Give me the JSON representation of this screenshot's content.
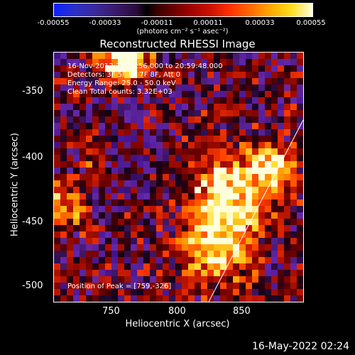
{
  "colorbar": {
    "ticks": [
      "-0.00055",
      "-0.00033",
      "-0.00011",
      "0.00011",
      "0.00033",
      "0.00055"
    ],
    "unit": "(photons cm⁻² s⁻¹ asec⁻²)"
  },
  "title": "Reconstructed RHESSI Image",
  "info": {
    "line1": "16-Nov-2012 20:56:56.000 to 20:59:48.000",
    "line2": "Detectors: 3F 5F 6F 7F 8F, Att 0",
    "line3": "Energy Range: 25.0 - 50.0 keV",
    "line4": "Clean     Total counts: 3.32E+03"
  },
  "peak_text": "Position of Peak = [759,-326]",
  "axes": {
    "xlabel": "Heliocentric X (arcsec)",
    "ylabel": "Heliocentric Y (arcsec)",
    "xticks": [
      "750",
      "800",
      "850"
    ],
    "yticks": [
      "-350",
      "-400",
      "-450",
      "-500"
    ]
  },
  "footer": "16-May-2022 02:24"
}
